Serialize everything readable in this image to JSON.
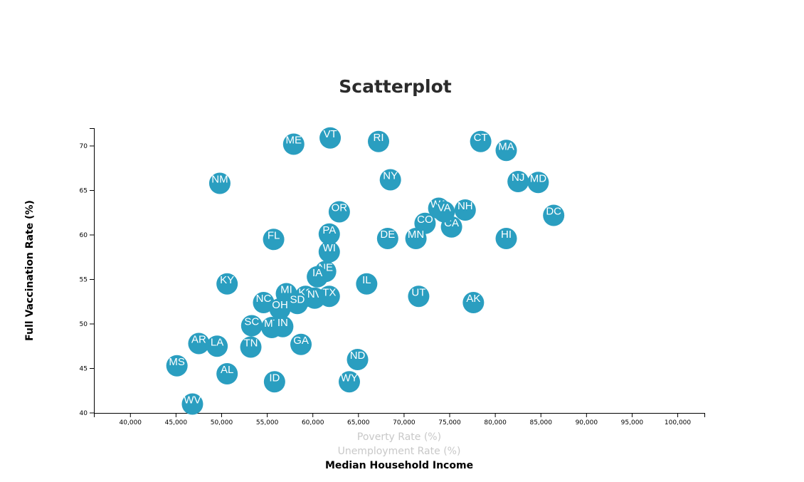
{
  "chart_data": {
    "type": "scatter",
    "title": "Scatterplot",
    "xlabel_options": [
      "Poverty Rate (%)",
      "Unemployment Rate (%)",
      "Median Household Income"
    ],
    "active_xlabel": "Median Household Income",
    "ylabel": "Full Vaccination Rate (%)",
    "xlim": [
      36000,
      103000
    ],
    "ylim": [
      40,
      72
    ],
    "x_ticks": [
      "40,000",
      "45,000",
      "50,000",
      "55,000",
      "60,000",
      "65,000",
      "70,000",
      "75,000",
      "80,000",
      "85,000",
      "90,000",
      "95,000",
      "100,000"
    ],
    "y_ticks": [
      "40",
      "45",
      "50",
      "55",
      "60",
      "65",
      "70"
    ],
    "point_color": "#2a9ec0",
    "label_color": "#ffffff",
    "points": [
      {
        "label": "VT",
        "x": 61900,
        "y": 70.9
      },
      {
        "label": "ME",
        "x": 57900,
        "y": 70.2
      },
      {
        "label": "RI",
        "x": 67200,
        "y": 70.5
      },
      {
        "label": "CT",
        "x": 78400,
        "y": 70.5
      },
      {
        "label": "MA",
        "x": 81200,
        "y": 69.5
      },
      {
        "label": "NM",
        "x": 49800,
        "y": 65.8
      },
      {
        "label": "NY",
        "x": 68500,
        "y": 66.2
      },
      {
        "label": "NJ",
        "x": 82500,
        "y": 66.0
      },
      {
        "label": "MD",
        "x": 84700,
        "y": 65.9
      },
      {
        "label": "OR",
        "x": 62900,
        "y": 62.6
      },
      {
        "label": "WA",
        "x": 73800,
        "y": 63.0
      },
      {
        "label": "NH",
        "x": 76700,
        "y": 62.8
      },
      {
        "label": "DC",
        "x": 86400,
        "y": 62.2
      },
      {
        "label": "CO",
        "x": 72300,
        "y": 61.3
      },
      {
        "label": "CA",
        "x": 75200,
        "y": 60.9
      },
      {
        "label": "VA",
        "x": 74400,
        "y": 62.6
      },
      {
        "label": "FL",
        "x": 55700,
        "y": 59.5
      },
      {
        "label": "PA",
        "x": 61800,
        "y": 60.1
      },
      {
        "label": "DE",
        "x": 68200,
        "y": 59.6
      },
      {
        "label": "MN",
        "x": 71300,
        "y": 59.6
      },
      {
        "label": "HI",
        "x": 81200,
        "y": 59.6
      },
      {
        "label": "WI",
        "x": 61800,
        "y": 58.1
      },
      {
        "label": "NE",
        "x": 61400,
        "y": 55.9
      },
      {
        "label": "IA",
        "x": 60500,
        "y": 55.3
      },
      {
        "label": "KY",
        "x": 50600,
        "y": 54.5
      },
      {
        "label": "IL",
        "x": 65900,
        "y": 54.5
      },
      {
        "label": "MI",
        "x": 57100,
        "y": 53.4
      },
      {
        "label": "KS",
        "x": 59200,
        "y": 53.1
      },
      {
        "label": "NV",
        "x": 60200,
        "y": 52.9
      },
      {
        "label": "TX",
        "x": 61800,
        "y": 53.1
      },
      {
        "label": "UT",
        "x": 71600,
        "y": 53.1
      },
      {
        "label": "AK",
        "x": 77600,
        "y": 52.4
      },
      {
        "label": "NC",
        "x": 54600,
        "y": 52.4
      },
      {
        "label": "SD",
        "x": 58300,
        "y": 52.3
      },
      {
        "label": "OH",
        "x": 56400,
        "y": 51.7
      },
      {
        "label": "SC",
        "x": 53300,
        "y": 49.8
      },
      {
        "label": "MT",
        "x": 55500,
        "y": 49.6
      },
      {
        "label": "IN",
        "x": 56700,
        "y": 49.7
      },
      {
        "label": "AR",
        "x": 47500,
        "y": 47.8
      },
      {
        "label": "LA",
        "x": 49500,
        "y": 47.5
      },
      {
        "label": "TN",
        "x": 53200,
        "y": 47.4
      },
      {
        "label": "GA",
        "x": 58700,
        "y": 47.7
      },
      {
        "label": "MS",
        "x": 45100,
        "y": 45.3
      },
      {
        "label": "AL",
        "x": 50600,
        "y": 44.4
      },
      {
        "label": "ID",
        "x": 55800,
        "y": 43.5
      },
      {
        "label": "ND",
        "x": 64900,
        "y": 46.0
      },
      {
        "label": "WY",
        "x": 64000,
        "y": 43.5
      },
      {
        "label": "WV",
        "x": 46800,
        "y": 41.0
      }
    ]
  }
}
